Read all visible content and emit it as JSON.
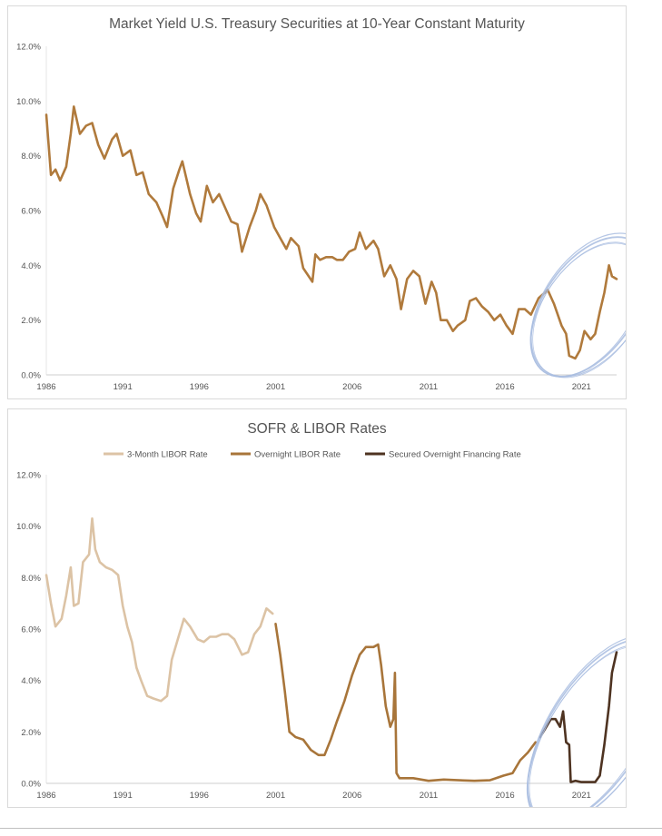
{
  "chart_data": [
    {
      "type": "line",
      "title": "Market Yield U.S. Treasury Securities at 10-Year Constant Maturity",
      "xlabel": "",
      "ylabel": "",
      "xlim": [
        1986,
        2023.3
      ],
      "ylim": [
        0,
        12
      ],
      "x_ticks": [
        "1986",
        "1991",
        "1996",
        "2001",
        "2006",
        "2011",
        "2016",
        "2021"
      ],
      "y_ticks": [
        "0.0%",
        "2.0%",
        "4.0%",
        "6.0%",
        "8.0%",
        "10.0%",
        "12.0%"
      ],
      "grid": false,
      "legend": "none",
      "series": [
        {
          "color": "#b07a3c",
          "x": [
            1986.0,
            1986.3,
            1986.6,
            1986.9,
            1987.3,
            1987.6,
            1987.8,
            1988.2,
            1988.6,
            1989.0,
            1989.4,
            1989.8,
            1990.3,
            1990.6,
            1991.0,
            1991.5,
            1991.9,
            1992.3,
            1992.7,
            1993.2,
            1993.6,
            1993.9,
            1994.3,
            1994.7,
            1994.9,
            1995.4,
            1995.8,
            1996.1,
            1996.5,
            1996.9,
            1997.3,
            1997.7,
            1998.1,
            1998.5,
            1998.8,
            1999.3,
            1999.7,
            2000.0,
            2000.4,
            2000.9,
            2001.3,
            2001.7,
            2002.0,
            2002.5,
            2002.8,
            2003.4,
            2003.6,
            2003.9,
            2004.3,
            2004.7,
            2005.0,
            2005.4,
            2005.8,
            2006.2,
            2006.5,
            2006.9,
            2007.4,
            2007.7,
            2008.1,
            2008.5,
            2008.9,
            2009.2,
            2009.6,
            2010.0,
            2010.4,
            2010.8,
            2011.2,
            2011.5,
            2011.8,
            2012.2,
            2012.6,
            2012.9,
            2013.4,
            2013.7,
            2014.1,
            2014.5,
            2014.9,
            2015.3,
            2015.7,
            2016.1,
            2016.5,
            2016.9,
            2017.3,
            2017.7,
            2018.2,
            2018.8,
            2019.2,
            2019.7,
            2020.0,
            2020.2,
            2020.6,
            2020.9,
            2021.2,
            2021.6,
            2021.9,
            2022.2,
            2022.5,
            2022.8,
            2023.0,
            2023.3
          ],
          "values": [
            9.5,
            7.3,
            7.5,
            7.1,
            7.6,
            8.8,
            9.8,
            8.8,
            9.1,
            9.2,
            8.4,
            7.9,
            8.6,
            8.8,
            8.0,
            8.2,
            7.3,
            7.4,
            6.6,
            6.3,
            5.8,
            5.4,
            6.8,
            7.5,
            7.8,
            6.6,
            5.9,
            5.6,
            6.9,
            6.3,
            6.6,
            6.1,
            5.6,
            5.5,
            4.5,
            5.4,
            6.0,
            6.6,
            6.2,
            5.4,
            5.0,
            4.6,
            5.0,
            4.7,
            3.9,
            3.4,
            4.4,
            4.2,
            4.3,
            4.3,
            4.2,
            4.2,
            4.5,
            4.6,
            5.2,
            4.6,
            4.9,
            4.6,
            3.6,
            4.0,
            3.5,
            2.4,
            3.5,
            3.8,
            3.6,
            2.6,
            3.4,
            3.0,
            2.0,
            2.0,
            1.6,
            1.8,
            2.0,
            2.7,
            2.8,
            2.5,
            2.3,
            2.0,
            2.2,
            1.8,
            1.5,
            2.4,
            2.4,
            2.2,
            2.8,
            3.1,
            2.6,
            1.8,
            1.5,
            0.7,
            0.6,
            0.9,
            1.6,
            1.3,
            1.5,
            2.3,
            3.0,
            4.0,
            3.6,
            3.5
          ]
        }
      ],
      "annotations": [
        "hand-drawn ellipse highlighting 2019–2023"
      ]
    },
    {
      "type": "line",
      "title": "SOFR & LIBOR Rates",
      "xlabel": "",
      "ylabel": "",
      "xlim": [
        1986,
        2023.3
      ],
      "ylim": [
        0,
        12
      ],
      "x_ticks": [
        "1986",
        "1991",
        "1996",
        "2001",
        "2006",
        "2011",
        "2016",
        "2021"
      ],
      "y_ticks": [
        "0.0%",
        "2.0%",
        "4.0%",
        "6.0%",
        "8.0%",
        "10.0%",
        "12.0%"
      ],
      "grid": false,
      "legend": "top",
      "series": [
        {
          "name": "3-Month LIBOR Rate",
          "color": "#dcc3a5",
          "x": [
            1986.0,
            1986.3,
            1986.6,
            1987.0,
            1987.3,
            1987.6,
            1987.8,
            1988.1,
            1988.4,
            1988.8,
            1989.0,
            1989.2,
            1989.5,
            1989.9,
            1990.3,
            1990.7,
            1991.0,
            1991.3,
            1991.6,
            1991.9,
            1992.2,
            1992.6,
            1993.0,
            1993.5,
            1993.9,
            1994.2,
            1994.6,
            1995.0,
            1995.4,
            1995.9,
            1996.3,
            1996.7,
            1997.1,
            1997.5,
            1997.9,
            1998.3,
            1998.8,
            1999.2,
            1999.6,
            2000.0,
            2000.4,
            2000.8
          ],
          "values": [
            8.1,
            7.0,
            6.1,
            6.4,
            7.3,
            8.4,
            6.9,
            7.0,
            8.6,
            8.9,
            10.3,
            9.1,
            8.6,
            8.4,
            8.3,
            8.1,
            6.9,
            6.1,
            5.5,
            4.5,
            4.0,
            3.4,
            3.3,
            3.2,
            3.4,
            4.8,
            5.6,
            6.4,
            6.1,
            5.6,
            5.5,
            5.7,
            5.7,
            5.8,
            5.8,
            5.6,
            5.0,
            5.1,
            5.8,
            6.1,
            6.8,
            6.6
          ]
        },
        {
          "name": "Overnight LIBOR Rate",
          "color": "#a8753a",
          "x": [
            2001.0,
            2001.3,
            2001.6,
            2001.9,
            2002.3,
            2002.8,
            2003.3,
            2003.8,
            2004.2,
            2004.6,
            2005.0,
            2005.5,
            2006.0,
            2006.5,
            2006.9,
            2007.4,
            2007.7,
            2007.9,
            2008.2,
            2008.5,
            2008.7,
            2008.8,
            2008.9,
            2009.1,
            2009.5,
            2010.0,
            2011.0,
            2012.0,
            2013.0,
            2014.0,
            2015.0,
            2015.9,
            2016.5,
            2017.0,
            2017.5,
            2018.0
          ],
          "values": [
            6.2,
            5.0,
            3.6,
            2.0,
            1.8,
            1.7,
            1.3,
            1.1,
            1.1,
            1.7,
            2.4,
            3.2,
            4.2,
            5.0,
            5.3,
            5.3,
            5.4,
            4.6,
            3.0,
            2.2,
            2.5,
            4.3,
            0.4,
            0.2,
            0.2,
            0.2,
            0.1,
            0.15,
            0.12,
            0.1,
            0.12,
            0.3,
            0.4,
            0.9,
            1.2,
            1.6
          ]
        },
        {
          "name": "Secured Overnight Financing Rate",
          "color": "#4e3321",
          "x": [
            2018.3,
            2018.7,
            2019.0,
            2019.3,
            2019.6,
            2019.8,
            2020.0,
            2020.2,
            2020.3,
            2020.6,
            2021.0,
            2021.5,
            2021.9,
            2022.2,
            2022.5,
            2022.8,
            2023.0,
            2023.3
          ],
          "values": [
            1.8,
            2.2,
            2.5,
            2.5,
            2.2,
            2.8,
            1.6,
            1.5,
            0.05,
            0.1,
            0.05,
            0.05,
            0.05,
            0.3,
            1.5,
            3.0,
            4.3,
            5.1
          ]
        }
      ],
      "annotations": [
        "hand-drawn ellipse highlighting 2019–2023"
      ]
    }
  ]
}
